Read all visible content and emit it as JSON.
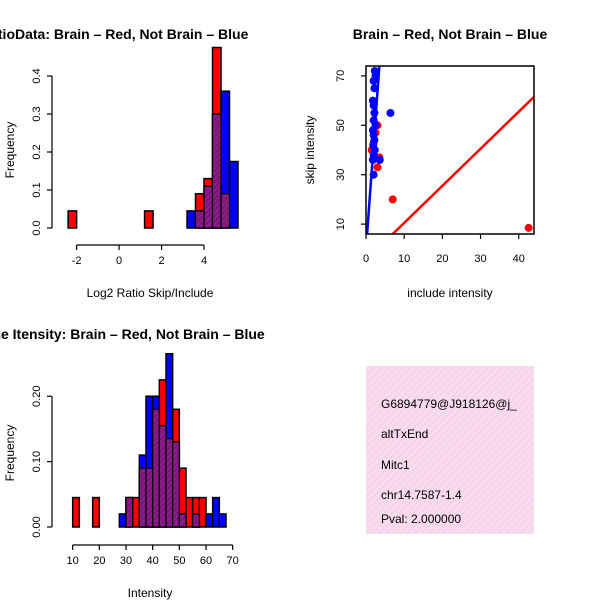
{
  "chart_data": [
    {
      "id": "ratio",
      "type": "bar",
      "title": "RatioData: Brain – Red, Not Brain – Blue",
      "xlabel": "Log2 Ratio Skip/Include",
      "ylabel": "Frequency",
      "xlim": [
        -2.5,
        5.6
      ],
      "ylim": [
        0,
        0.45
      ],
      "xticks": [
        -2,
        0,
        2,
        4
      ],
      "yticks": [
        0.0,
        0.1,
        0.2,
        0.3,
        0.4
      ],
      "bin_width": 0.4,
      "series": [
        {
          "name": "Brain",
          "color": "#ff0000",
          "bins": [
            {
              "x": -2.4,
              "v": 0.045
            },
            {
              "x": 1.2,
              "v": 0.045
            },
            {
              "x": 3.6,
              "v": 0.09
            },
            {
              "x": 4.0,
              "v": 0.13
            },
            {
              "x": 4.4,
              "v": 0.475
            },
            {
              "x": 4.8,
              "v": 0.09
            }
          ]
        },
        {
          "name": "Not Brain",
          "color": "#0000ff",
          "bins": [
            {
              "x": 3.2,
              "v": 0.045
            },
            {
              "x": 3.6,
              "v": 0.045
            },
            {
              "x": 4.0,
              "v": 0.11
            },
            {
              "x": 4.4,
              "v": 0.3
            },
            {
              "x": 4.8,
              "v": 0.36
            },
            {
              "x": 5.2,
              "v": 0.175
            }
          ]
        }
      ]
    },
    {
      "id": "scatter",
      "type": "scatter",
      "title": "Brain – Red, Not Brain – Blue",
      "xlabel": "include intensity",
      "ylabel": "skip intensity",
      "xlim": [
        0,
        44
      ],
      "ylim": [
        6,
        74
      ],
      "xticks": [
        0,
        10,
        20,
        30,
        40
      ],
      "yticks": [
        10,
        30,
        50,
        70
      ],
      "series": [
        {
          "name": "Brain",
          "color": "#ff0000",
          "points": [
            [
              42.6,
              8.5
            ],
            [
              7.0,
              20
            ],
            [
              3.0,
              33
            ],
            [
              3.5,
              37
            ],
            [
              2.5,
              47
            ],
            [
              3.0,
              50
            ],
            [
              2.0,
              43
            ],
            [
              1.5,
              40
            ]
          ],
          "fit": [
            [
              3.0,
              0
            ],
            [
              44,
              61.5
            ]
          ]
        },
        {
          "name": "Not Brain",
          "color": "#0000ff",
          "points": [
            [
              2.3,
              72
            ],
            [
              2.5,
              70
            ],
            [
              2.0,
              68
            ],
            [
              2.2,
              65
            ],
            [
              1.8,
              60
            ],
            [
              2.0,
              58
            ],
            [
              2.2,
              55
            ],
            [
              6.4,
              55
            ],
            [
              2.0,
              52
            ],
            [
              2.5,
              50
            ],
            [
              1.8,
              48
            ],
            [
              2.0,
              46
            ],
            [
              2.2,
              44
            ],
            [
              1.9,
              42
            ],
            [
              2.3,
              40
            ],
            [
              2.0,
              38
            ],
            [
              1.8,
              36
            ],
            [
              3.6,
              36
            ],
            [
              2.0,
              30
            ]
          ],
          "fit": [
            [
              0.0,
              0
            ],
            [
              3.5,
              74
            ]
          ]
        }
      ]
    },
    {
      "id": "intensity",
      "type": "bar",
      "title": "Line Itensity: Brain – Red, Not Brain – Blue",
      "xlabel": "Intensity",
      "ylabel": "Frequency",
      "xlim": [
        7.5,
        72
      ],
      "ylim": [
        0,
        0.26
      ],
      "xticks": [
        10,
        20,
        30,
        40,
        50,
        60,
        70
      ],
      "yticks": [
        0.0,
        0.1,
        0.2
      ],
      "bin_width": 2.5,
      "series": [
        {
          "name": "Brain",
          "color": "#ff0000",
          "bins": [
            {
              "x": 10,
              "v": 0.045
            },
            {
              "x": 17.5,
              "v": 0.045
            },
            {
              "x": 30,
              "v": 0.045
            },
            {
              "x": 32.5,
              "v": 0.045
            },
            {
              "x": 35,
              "v": 0.09
            },
            {
              "x": 37.5,
              "v": 0.09
            },
            {
              "x": 40,
              "v": 0.18
            },
            {
              "x": 42.5,
              "v": 0.225
            },
            {
              "x": 45,
              "v": 0.135
            },
            {
              "x": 47.5,
              "v": 0.18
            },
            {
              "x": 50,
              "v": 0.09
            },
            {
              "x": 52.5,
              "v": 0.045
            },
            {
              "x": 55,
              "v": 0.045
            },
            {
              "x": 57.5,
              "v": 0.045
            }
          ]
        },
        {
          "name": "Not Brain",
          "color": "#0000ff",
          "bins": [
            {
              "x": 27.5,
              "v": 0.02
            },
            {
              "x": 30,
              "v": 0.045
            },
            {
              "x": 35,
              "v": 0.11
            },
            {
              "x": 37.5,
              "v": 0.2
            },
            {
              "x": 40,
              "v": 0.2
            },
            {
              "x": 42.5,
              "v": 0.155
            },
            {
              "x": 45,
              "v": 0.265
            },
            {
              "x": 47.5,
              "v": 0.13
            },
            {
              "x": 50,
              "v": 0.02
            },
            {
              "x": 55,
              "v": 0.02
            },
            {
              "x": 60,
              "v": 0.02
            },
            {
              "x": 62.5,
              "v": 0.045
            },
            {
              "x": 65,
              "v": 0.02
            }
          ]
        }
      ]
    }
  ],
  "info_panel": {
    "lines": [
      "G6894779@J918126@j_",
      "altTxEnd",
      "Mitc1",
      "chr14.7587-1.4"
    ],
    "pval": "Pval: 2.000000",
    "bg_color": "#f5d6ea",
    "pval_color": "#cc0000"
  },
  "colors": {
    "overlap": "#8b1a8b",
    "hatch": "#5c0f5c"
  }
}
